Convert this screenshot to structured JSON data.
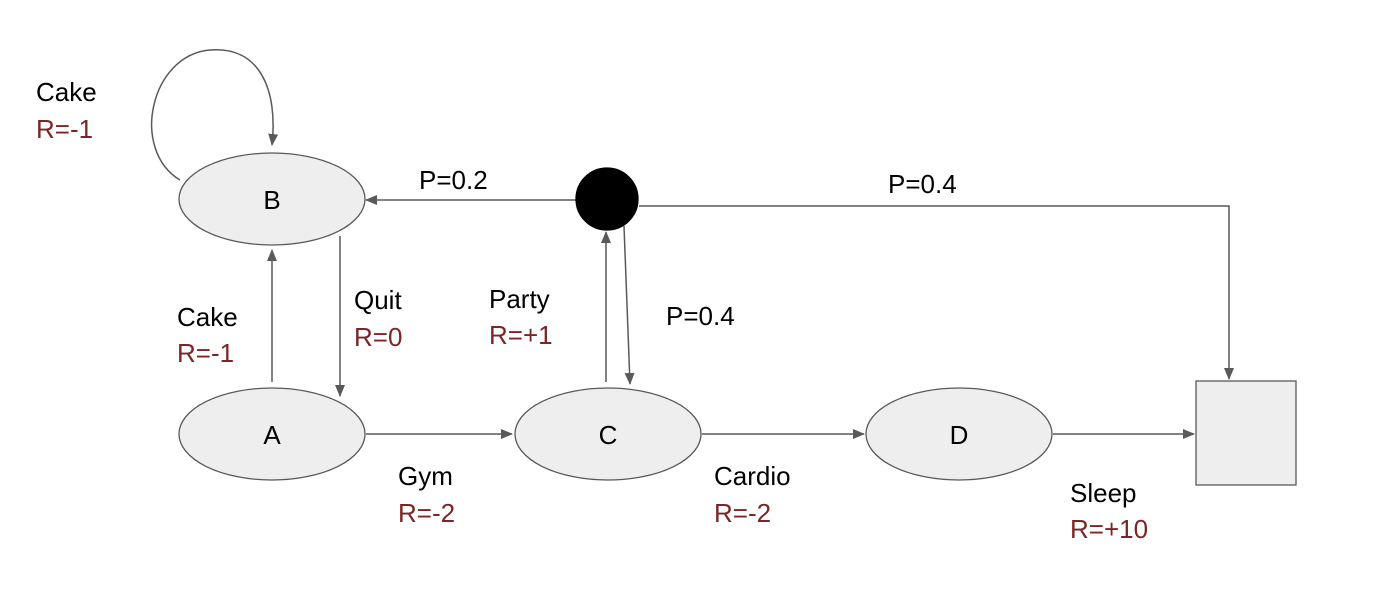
{
  "colors": {
    "node_fill": "#eeeeee",
    "node_stroke": "#595959",
    "edge": "#595959",
    "chance_node": "#000000",
    "text": "#000000",
    "reward": "#7b2525"
  },
  "nodes": {
    "a": {
      "label": "A"
    },
    "b": {
      "label": "B"
    },
    "c": {
      "label": "C"
    },
    "d": {
      "label": "D"
    },
    "chance": {
      "label": ""
    },
    "terminal": {
      "label": ""
    }
  },
  "edges": {
    "b_self_cake": {
      "action": "Cake",
      "reward": "R=-1"
    },
    "a_to_b_cake": {
      "action": "Cake",
      "reward": "R=-1"
    },
    "b_to_a_quit": {
      "action": "Quit",
      "reward": "R=0"
    },
    "a_to_c_gym": {
      "action": "Gym",
      "reward": "R=-2"
    },
    "c_to_chance_party": {
      "action": "Party",
      "reward": "R=+1"
    },
    "c_to_d_cardio": {
      "action": "Cardio",
      "reward": "R=-2"
    },
    "d_to_terminal_sleep": {
      "action": "Sleep",
      "reward": "R=+10"
    },
    "chance_to_b": {
      "probability": "P=0.2"
    },
    "chance_to_c": {
      "probability": "P=0.4"
    },
    "chance_to_terminal": {
      "probability": "P=0.4"
    }
  }
}
